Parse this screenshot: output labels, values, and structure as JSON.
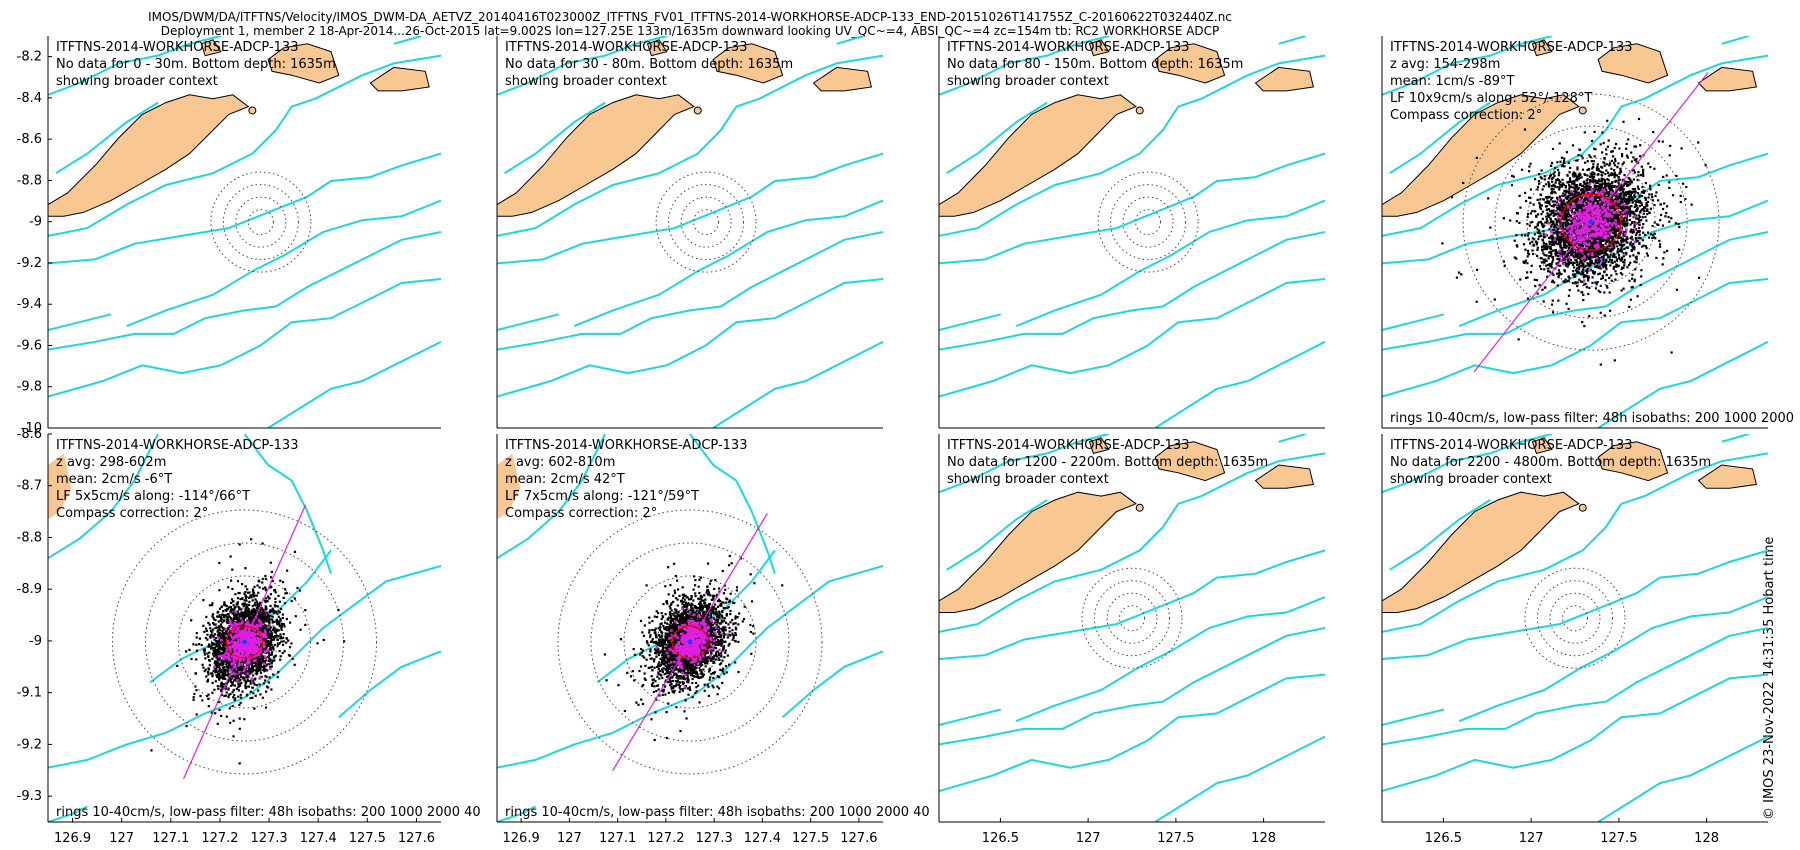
{
  "header": {
    "line1": "IMOS/DWM/DA/ITFTNS/Velocity/IMOS_DWM-DA_AETVZ_20140416T023000Z_ITFTNS_FV01_ITFTNS-2014-WORKHORSE-ADCP-133_END-20151026T141755Z_C-20160622T032440Z.nc",
    "line2": "Deployment 1, member 2 18-Apr-2014...26-Oct-2015 lat=9.002S lon=127.25E 133m/1635m downward looking UV_QC~=4, ABSI_QC~=4 zc=154m tb: RC2 WORKHORSE ADCP"
  },
  "stamp": "© IMOS 23-Nov-2022 14:31:35 Hobart time",
  "colors": {
    "land": "#f9c892",
    "isobath": "#1ed8d8",
    "scatter": "#000000",
    "lowpass": "#e020e0",
    "axis_line": "#e020e0",
    "mean_ring": "#ff0000",
    "rings": "#444444"
  },
  "chart_data": [
    {
      "type": "scatter",
      "id": "p1",
      "title": "ITFTNS-2014-WORKHORSE-ADCP-133",
      "lines": [
        "No data for 0 - 30m. Bottom depth: 1635m",
        "showing broader context"
      ],
      "has_data": false,
      "footer": "",
      "xlim": [
        125.95,
        128.35
      ],
      "ylim": [
        -10.0,
        -8.1
      ],
      "yticks": [
        -8.2,
        -8.4,
        -8.6,
        -8.8,
        -9,
        -9.2,
        -9.4,
        -9.6,
        -9.8,
        -10
      ],
      "xticks": []
    },
    {
      "type": "scatter",
      "id": "p2",
      "title": "ITFTNS-2014-WORKHORSE-ADCP-133",
      "lines": [
        "No data for 30 - 80m. Bottom depth: 1635m",
        "showing broader context"
      ],
      "has_data": false,
      "footer": "",
      "xlim": [
        125.95,
        128.35
      ],
      "ylim": [
        -10.0,
        -8.1
      ],
      "yticks": [],
      "xticks": []
    },
    {
      "type": "scatter",
      "id": "p3",
      "title": "ITFTNS-2014-WORKHORSE-ADCP-133",
      "lines": [
        "No data for 80 - 150m. Bottom depth: 1635m",
        "showing broader context"
      ],
      "has_data": false,
      "footer": "",
      "xlim": [
        125.95,
        128.35
      ],
      "ylim": [
        -10.0,
        -8.1
      ],
      "yticks": [],
      "xticks": []
    },
    {
      "type": "scatter",
      "id": "p4",
      "title": "ITFTNS-2014-WORKHORSE-ADCP-133",
      "lines": [
        "z avg: 154-298m",
        "mean: 1cm/s -89°T",
        "LF 10x9cm/s along: 52°/-128°T",
        "Compass correction: 2°"
      ],
      "has_data": true,
      "footer": "rings 10-40cm/s, low-pass filter: 48h isobaths: 200 1000 2000",
      "xlim": [
        125.95,
        128.35
      ],
      "ylim": [
        -10.0,
        -8.1
      ],
      "yticks": [],
      "xticks": [],
      "mean": {
        "speed_cms": 1,
        "dir_degT": -89
      },
      "lf": {
        "major_cms": 10,
        "minor_cms": 9,
        "along_degT": 52
      }
    },
    {
      "type": "scatter",
      "id": "p5",
      "title": "ITFTNS-2014-WORKHORSE-ADCP-133",
      "lines": [
        "z avg: 298-602m",
        "mean: 2cm/s -6°T",
        "LF 5x5cm/s along: -114°/66°T",
        "Compass correction: 2°"
      ],
      "has_data": true,
      "footer": "rings 10-40cm/s, low-pass filter: 48h isobaths: 200 1000 2000 40",
      "xlim": [
        126.85,
        127.65
      ],
      "ylim": [
        -9.35,
        -8.6
      ],
      "yticks": [
        -8.6,
        -8.7,
        -8.8,
        -8.9,
        -9,
        -9.1,
        -9.2,
        -9.3
      ],
      "xticks": [
        "126.9",
        "127",
        "127.1",
        "127.2",
        "127.3",
        "127.4",
        "127.5",
        "127.6"
      ],
      "mean": {
        "speed_cms": 2,
        "dir_degT": -6
      },
      "lf": {
        "major_cms": 5,
        "minor_cms": 5,
        "along_degT": 66
      }
    },
    {
      "type": "scatter",
      "id": "p6",
      "title": "ITFTNS-2014-WORKHORSE-ADCP-133",
      "lines": [
        "z avg: 602-810m",
        "mean: 2cm/s 42°T",
        "LF 7x5cm/s along: -121°/59°T",
        "Compass correction: 2°"
      ],
      "has_data": true,
      "footer": "rings 10-40cm/s, low-pass filter: 48h isobaths: 200 1000 2000 40",
      "xlim": [
        126.85,
        127.65
      ],
      "ylim": [
        -9.35,
        -8.6
      ],
      "yticks": [],
      "xticks": [
        "126.9",
        "127",
        "127.1",
        "127.2",
        "127.3",
        "127.4",
        "127.5",
        "127.6"
      ],
      "mean": {
        "speed_cms": 2,
        "dir_degT": 42
      },
      "lf": {
        "major_cms": 7,
        "minor_cms": 5,
        "along_degT": 59
      }
    },
    {
      "type": "scatter",
      "id": "p7",
      "title": "ITFTNS-2014-WORKHORSE-ADCP-133",
      "lines": [
        "No data for 1200 - 2200m. Bottom depth: 1635m",
        "showing broader context"
      ],
      "has_data": false,
      "footer": "",
      "xlim": [
        126.15,
        128.35
      ],
      "ylim": [
        -10.0,
        -8.1
      ],
      "yticks": [],
      "xticks": [
        "126.5",
        "127",
        "127.5",
        "128"
      ]
    },
    {
      "type": "scatter",
      "id": "p8",
      "title": "ITFTNS-2014-WORKHORSE-ADCP-133",
      "lines": [
        "No data for 2200 - 4800m. Bottom depth: 1635m",
        "showing broader context"
      ],
      "has_data": false,
      "footer": "",
      "xlim": [
        126.15,
        128.35
      ],
      "ylim": [
        -10.0,
        -8.1
      ],
      "yticks": [],
      "xticks": [
        "126.5",
        "127",
        "127.5",
        "128"
      ]
    }
  ]
}
